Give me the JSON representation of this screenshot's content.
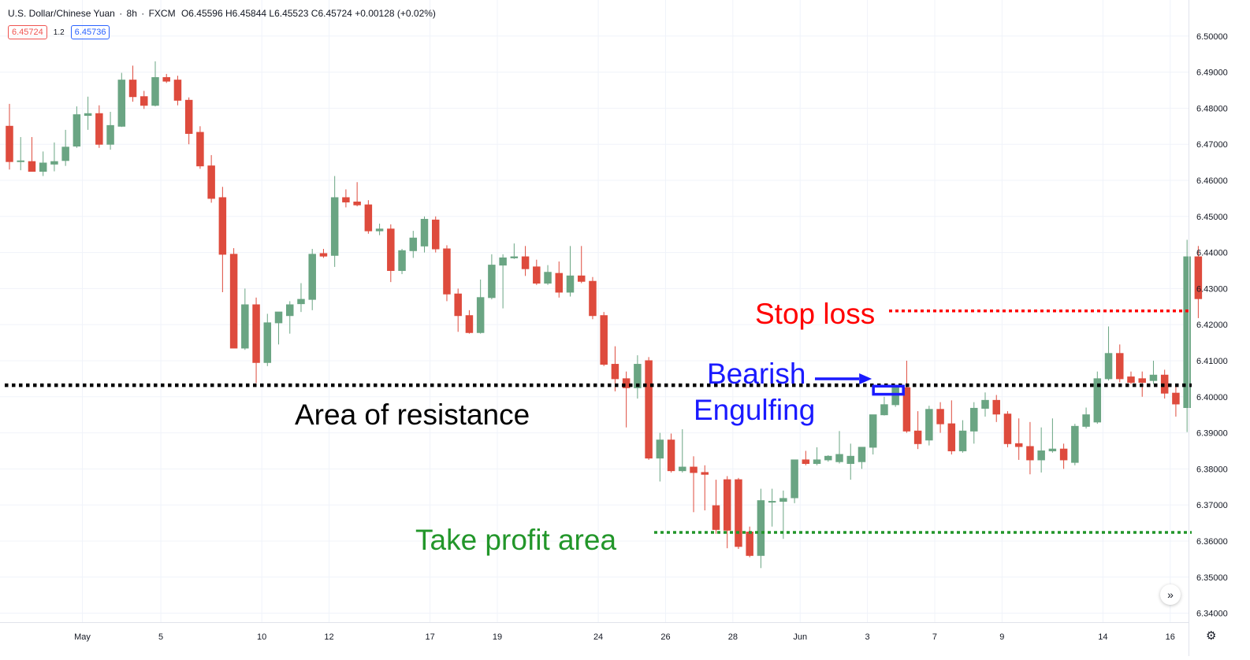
{
  "header": {
    "symbol": "U.S. Dollar/Chinese Yuan",
    "interval": "8h",
    "source": "FXCM",
    "open": "O6.45596",
    "high": "H6.45844",
    "low": "L6.45523",
    "close": "C6.45724",
    "change": "+0.00128 (+0.02%)"
  },
  "price_badges": {
    "bid": "6.45724",
    "spread": "1.2",
    "ask": "6.45736"
  },
  "annotations": {
    "stop_loss": "Stop loss",
    "bearish": "Bearish",
    "engulfing": "Engulfing",
    "area_of_resistance": "Area of resistance",
    "take_profit": "Take profit area"
  },
  "colors": {
    "up": "#6aa583",
    "down": "#de4b3d",
    "stop_loss": "#ff0000",
    "engulfing_box": "#1a1aff",
    "take_profit": "#22962a",
    "resistance": "#000000"
  },
  "icons": {
    "goto_realtime": "double-chevron-right-icon",
    "settings": "gear-icon"
  },
  "chart_data": {
    "type": "candlestick",
    "ylim": [
      6.3375,
      6.51
    ],
    "y_ticks": [
      "6.34000",
      "6.35000",
      "6.36000",
      "6.37000",
      "6.38000",
      "6.39000",
      "6.40000",
      "6.41000",
      "6.42000",
      "6.43000",
      "6.44000",
      "6.45000",
      "6.46000",
      "6.47000",
      "6.48000",
      "6.49000",
      "6.50000"
    ],
    "x_ticks": [
      {
        "label": "May",
        "index": 6.5
      },
      {
        "label": "5",
        "index": 13.5
      },
      {
        "label": "10",
        "index": 22.5
      },
      {
        "label": "12",
        "index": 28.5
      },
      {
        "label": "17",
        "index": 37.5
      },
      {
        "label": "19",
        "index": 43.5
      },
      {
        "label": "24",
        "index": 52.5
      },
      {
        "label": "26",
        "index": 58.5
      },
      {
        "label": "28",
        "index": 64.5
      },
      {
        "label": "Jun",
        "index": 70.5
      },
      {
        "label": "3",
        "index": 76.5
      },
      {
        "label": "7",
        "index": 82.5
      },
      {
        "label": "9",
        "index": 88.5
      },
      {
        "label": "14",
        "index": 97.5
      },
      {
        "label": "16",
        "index": 103.5
      }
    ],
    "resistance_level": 6.4032,
    "stop_loss_level": 6.4238,
    "take_profit_level": 6.3624,
    "engulfing_index": 79,
    "candles": [
      {
        "o": 6.475,
        "h": 6.4812,
        "l": 6.463,
        "c": 6.4652
      },
      {
        "o": 6.4653,
        "h": 6.472,
        "l": 6.4628,
        "c": 6.4654
      },
      {
        "o": 6.4652,
        "h": 6.472,
        "l": 6.4628,
        "c": 6.4625
      },
      {
        "o": 6.4625,
        "h": 6.468,
        "l": 6.4612,
        "c": 6.4648
      },
      {
        "o": 6.4645,
        "h": 6.4705,
        "l": 6.4625,
        "c": 6.4652
      },
      {
        "o": 6.4655,
        "h": 6.474,
        "l": 6.464,
        "c": 6.4692
      },
      {
        "o": 6.4695,
        "h": 6.4805,
        "l": 6.469,
        "c": 6.4782
      },
      {
        "o": 6.478,
        "h": 6.4832,
        "l": 6.474,
        "c": 6.4785
      },
      {
        "o": 6.4785,
        "h": 6.4808,
        "l": 6.469,
        "c": 6.47
      },
      {
        "o": 6.47,
        "h": 6.479,
        "l": 6.4685,
        "c": 6.4752
      },
      {
        "o": 6.475,
        "h": 6.4898,
        "l": 6.4748,
        "c": 6.4878
      },
      {
        "o": 6.4878,
        "h": 6.4918,
        "l": 6.4818,
        "c": 6.4832
      },
      {
        "o": 6.4832,
        "h": 6.4848,
        "l": 6.4798,
        "c": 6.4808
      },
      {
        "o": 6.4808,
        "h": 6.493,
        "l": 6.4805,
        "c": 6.4885
      },
      {
        "o": 6.4885,
        "h": 6.4895,
        "l": 6.487,
        "c": 6.4875
      },
      {
        "o": 6.4878,
        "h": 6.489,
        "l": 6.4808,
        "c": 6.4822
      },
      {
        "o": 6.4822,
        "h": 6.483,
        "l": 6.47,
        "c": 6.473
      },
      {
        "o": 6.4733,
        "h": 6.475,
        "l": 6.4632,
        "c": 6.464
      },
      {
        "o": 6.464,
        "h": 6.467,
        "l": 6.4538,
        "c": 6.455
      },
      {
        "o": 6.4552,
        "h": 6.4582,
        "l": 6.429,
        "c": 6.4395
      },
      {
        "o": 6.4395,
        "h": 6.4412,
        "l": 6.4135,
        "c": 6.4135
      },
      {
        "o": 6.4135,
        "h": 6.43,
        "l": 6.413,
        "c": 6.4255
      },
      {
        "o": 6.4255,
        "h": 6.4275,
        "l": 6.4038,
        "c": 6.4095
      },
      {
        "o": 6.4095,
        "h": 6.423,
        "l": 6.4085,
        "c": 6.4205
      },
      {
        "o": 6.4205,
        "h": 6.4235,
        "l": 6.4145,
        "c": 6.4235
      },
      {
        "o": 6.4225,
        "h": 6.4265,
        "l": 6.4175,
        "c": 6.4255
      },
      {
        "o": 6.4258,
        "h": 6.4315,
        "l": 6.4235,
        "c": 6.427
      },
      {
        "o": 6.427,
        "h": 6.441,
        "l": 6.424,
        "c": 6.4395
      },
      {
        "o": 6.4397,
        "h": 6.441,
        "l": 6.4385,
        "c": 6.439
      },
      {
        "o": 6.4392,
        "h": 6.4612,
        "l": 6.436,
        "c": 6.4552
      },
      {
        "o": 6.4552,
        "h": 6.4575,
        "l": 6.4525,
        "c": 6.454
      },
      {
        "o": 6.454,
        "h": 6.4595,
        "l": 6.4528,
        "c": 6.4532
      },
      {
        "o": 6.4532,
        "h": 6.4545,
        "l": 6.4452,
        "c": 6.446
      },
      {
        "o": 6.446,
        "h": 6.448,
        "l": 6.4448,
        "c": 6.4465
      },
      {
        "o": 6.4465,
        "h": 6.4478,
        "l": 6.4318,
        "c": 6.435
      },
      {
        "o": 6.435,
        "h": 6.441,
        "l": 6.434,
        "c": 6.4405
      },
      {
        "o": 6.4405,
        "h": 6.446,
        "l": 6.4385,
        "c": 6.444
      },
      {
        "o": 6.4418,
        "h": 6.45,
        "l": 6.44,
        "c": 6.4492
      },
      {
        "o": 6.449,
        "h": 6.45,
        "l": 6.44,
        "c": 6.441
      },
      {
        "o": 6.441,
        "h": 6.442,
        "l": 6.4265,
        "c": 6.4285
      },
      {
        "o": 6.4285,
        "h": 6.43,
        "l": 6.418,
        "c": 6.4225
      },
      {
        "o": 6.4225,
        "h": 6.424,
        "l": 6.4175,
        "c": 6.4178
      },
      {
        "o": 6.4178,
        "h": 6.4325,
        "l": 6.4175,
        "c": 6.4275
      },
      {
        "o": 6.4275,
        "h": 6.4395,
        "l": 6.427,
        "c": 6.4365
      },
      {
        "o": 6.4365,
        "h": 6.4395,
        "l": 6.4245,
        "c": 6.4385
      },
      {
        "o": 6.4385,
        "h": 6.4425,
        "l": 6.4382,
        "c": 6.4388
      },
      {
        "o": 6.4388,
        "h": 6.4418,
        "l": 6.4335,
        "c": 6.4355
      },
      {
        "o": 6.436,
        "h": 6.438,
        "l": 6.431,
        "c": 6.4315
      },
      {
        "o": 6.4315,
        "h": 6.4365,
        "l": 6.431,
        "c": 6.4345
      },
      {
        "o": 6.4342,
        "h": 6.4375,
        "l": 6.4275,
        "c": 6.429
      },
      {
        "o": 6.429,
        "h": 6.4418,
        "l": 6.4278,
        "c": 6.4335
      },
      {
        "o": 6.4335,
        "h": 6.4418,
        "l": 6.4315,
        "c": 6.432
      },
      {
        "o": 6.432,
        "h": 6.4332,
        "l": 6.4215,
        "c": 6.4225
      },
      {
        "o": 6.4225,
        "h": 6.4235,
        "l": 6.4085,
        "c": 6.409
      },
      {
        "o": 6.409,
        "h": 6.414,
        "l": 6.4015,
        "c": 6.405
      },
      {
        "o": 6.405,
        "h": 6.407,
        "l": 6.3915,
        "c": 6.4025
      },
      {
        "o": 6.4025,
        "h": 6.4115,
        "l": 6.3995,
        "c": 6.409
      },
      {
        "o": 6.41,
        "h": 6.411,
        "l": 6.3825,
        "c": 6.383
      },
      {
        "o": 6.383,
        "h": 6.39,
        "l": 6.3765,
        "c": 6.388
      },
      {
        "o": 6.388,
        "h": 6.3898,
        "l": 6.379,
        "c": 6.3795
      },
      {
        "o": 6.3795,
        "h": 6.391,
        "l": 6.379,
        "c": 6.3805
      },
      {
        "o": 6.3805,
        "h": 6.3835,
        "l": 6.368,
        "c": 6.379
      },
      {
        "o": 6.379,
        "h": 6.381,
        "l": 6.3685,
        "c": 6.3785
      },
      {
        "o": 6.3698,
        "h": 6.377,
        "l": 6.362,
        "c": 6.3632
      },
      {
        "o": 6.377,
        "h": 6.378,
        "l": 6.358,
        "c": 6.363
      },
      {
        "o": 6.377,
        "h": 6.3775,
        "l": 6.3578,
        "c": 6.3585
      },
      {
        "o": 6.3625,
        "h": 6.364,
        "l": 6.3555,
        "c": 6.356
      },
      {
        "o": 6.356,
        "h": 6.3745,
        "l": 6.3525,
        "c": 6.3712
      },
      {
        "o": 6.371,
        "h": 6.3745,
        "l": 6.364,
        "c": 6.371
      },
      {
        "o": 6.371,
        "h": 6.374,
        "l": 6.3606,
        "c": 6.3718
      },
      {
        "o": 6.372,
        "h": 6.3825,
        "l": 6.3705,
        "c": 6.3825
      },
      {
        "o": 6.3825,
        "h": 6.385,
        "l": 6.381,
        "c": 6.3815
      },
      {
        "o": 6.3815,
        "h": 6.386,
        "l": 6.381,
        "c": 6.3825
      },
      {
        "o": 6.3825,
        "h": 6.3838,
        "l": 6.382,
        "c": 6.3835
      },
      {
        "o": 6.382,
        "h": 6.3905,
        "l": 6.3815,
        "c": 6.384
      },
      {
        "o": 6.3815,
        "h": 6.387,
        "l": 6.377,
        "c": 6.3835
      },
      {
        "o": 6.382,
        "h": 6.386,
        "l": 6.38,
        "c": 6.386
      },
      {
        "o": 6.386,
        "h": 6.395,
        "l": 6.384,
        "c": 6.395
      },
      {
        "o": 6.395,
        "h": 6.4,
        "l": 6.3948,
        "c": 6.3978
      },
      {
        "o": 6.3978,
        "h": 6.4025,
        "l": 6.3972,
        "c": 6.4025
      },
      {
        "o": 6.4025,
        "h": 6.41,
        "l": 6.39,
        "c": 6.3905
      },
      {
        "o": 6.3905,
        "h": 6.396,
        "l": 6.3855,
        "c": 6.387
      },
      {
        "o": 6.388,
        "h": 6.3975,
        "l": 6.3865,
        "c": 6.3965
      },
      {
        "o": 6.3965,
        "h": 6.3985,
        "l": 6.39,
        "c": 6.3925
      },
      {
        "o": 6.3925,
        "h": 6.399,
        "l": 6.384,
        "c": 6.385
      },
      {
        "o": 6.385,
        "h": 6.3935,
        "l": 6.3845,
        "c": 6.3905
      },
      {
        "o": 6.3905,
        "h": 6.3985,
        "l": 6.387,
        "c": 6.3968
      },
      {
        "o": 6.3968,
        "h": 6.4012,
        "l": 6.3945,
        "c": 6.399
      },
      {
        "o": 6.399,
        "h": 6.4005,
        "l": 6.393,
        "c": 6.3952
      },
      {
        "o": 6.3952,
        "h": 6.396,
        "l": 6.386,
        "c": 6.387
      },
      {
        "o": 6.387,
        "h": 6.394,
        "l": 6.3825,
        "c": 6.3862
      },
      {
        "o": 6.3862,
        "h": 6.393,
        "l": 6.3785,
        "c": 6.3825
      },
      {
        "o": 6.3825,
        "h": 6.3915,
        "l": 6.379,
        "c": 6.385
      },
      {
        "o": 6.385,
        "h": 6.394,
        "l": 6.3845,
        "c": 6.3855
      },
      {
        "o": 6.3855,
        "h": 6.387,
        "l": 6.38,
        "c": 6.3825
      },
      {
        "o": 6.3818,
        "h": 6.3925,
        "l": 6.381,
        "c": 6.3918
      },
      {
        "o": 6.3918,
        "h": 6.397,
        "l": 6.3912,
        "c": 6.395
      },
      {
        "o": 6.393,
        "h": 6.407,
        "l": 6.3925,
        "c": 6.405
      },
      {
        "o": 6.405,
        "h": 6.4195,
        "l": 6.4045,
        "c": 6.412
      },
      {
        "o": 6.412,
        "h": 6.4145,
        "l": 6.404,
        "c": 6.405
      },
      {
        "o": 6.4055,
        "h": 6.407,
        "l": 6.4035,
        "c": 6.404
      },
      {
        "o": 6.405,
        "h": 6.407,
        "l": 6.4,
        "c": 6.404
      },
      {
        "o": 6.4045,
        "h": 6.41,
        "l": 6.4035,
        "c": 6.406
      },
      {
        "o": 6.406,
        "h": 6.4075,
        "l": 6.3995,
        "c": 6.401
      },
      {
        "o": 6.401,
        "h": 6.403,
        "l": 6.3945,
        "c": 6.398
      },
      {
        "o": 6.397,
        "h": 6.4435,
        "l": 6.3902,
        "c": 6.4388
      },
      {
        "o": 6.4388,
        "h": 6.4418,
        "l": 6.4218,
        "c": 6.4272
      }
    ]
  }
}
